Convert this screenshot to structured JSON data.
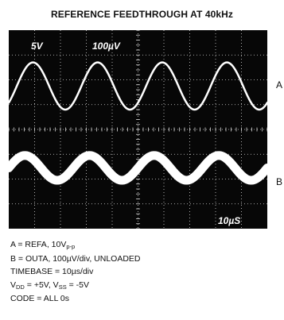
{
  "title": "REFERENCE FEEDTHROUGH AT 40kHz",
  "colors": {
    "screen": "#070707",
    "trace": "#ffffff",
    "graticule": "#d8d8d8"
  },
  "chart_data": {
    "type": "line",
    "title": "REFERENCE FEEDTHROUGH AT 40kHz",
    "screen_labels": {
      "ch_a_scale": "5V",
      "ch_b_scale": "100µV",
      "timebase": "10µS"
    },
    "grid": true,
    "x_divisions": 10,
    "y_divisions": 8,
    "xlim": [
      0,
      100
    ],
    "x_unit": "µs",
    "series": [
      {
        "name": "A",
        "frequency_khz": 40,
        "cycles_shown": 4,
        "amplitude_vpp": 10,
        "center_div": 2.25,
        "half_amplitude_div": 0.95,
        "phase_deg": -45,
        "trace_width": 2.5
      },
      {
        "name": "B",
        "frequency_khz": 40,
        "cycles_shown": 4,
        "volts_per_div": "100µV/div",
        "center_div": 5.55,
        "half_amplitude_div": 0.5,
        "phase_deg": 0,
        "trace_width": 11
      }
    ]
  },
  "notes": {
    "line1": {
      "text": "A = REFA, 10V",
      "sub": "p-p",
      "rest": ""
    },
    "line2": "B = OUTA, 100µV/div, UNLOADED",
    "line3": "TIMEBASE = 10µs/div",
    "line4": {
      "a": "V",
      "a_sub": "DD",
      "b": " = +5V, V",
      "b_sub": "SS",
      "c": " = -5V"
    },
    "line5": "CODE = ALL 0s"
  }
}
